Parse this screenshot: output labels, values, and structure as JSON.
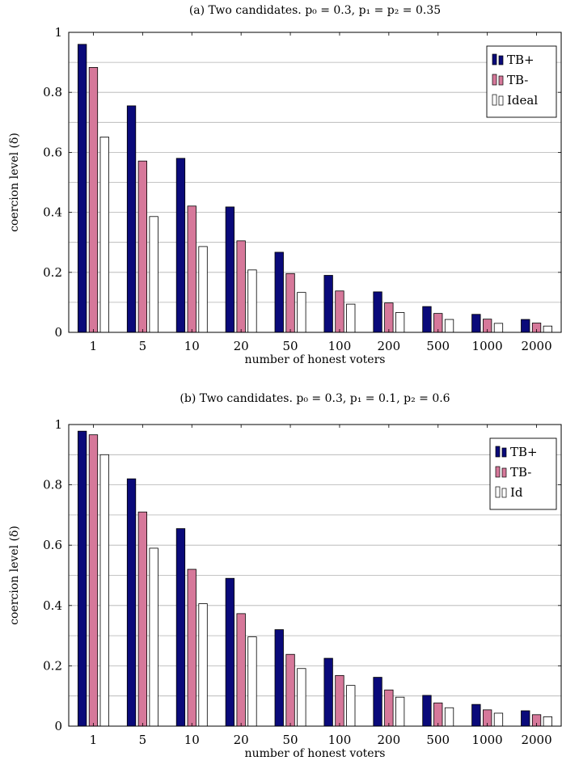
{
  "chart_data": [
    {
      "type": "bar",
      "title": "(a) Two candidates. p₀ = 0.3, p₁ = p₂ = 0.35",
      "xlabel": "number of honest voters",
      "ylabel": "coercion level (δ)",
      "ylim": [
        0,
        1
      ],
      "yticks": [
        "0",
        "0.2",
        "0.4",
        "0.6",
        "0.8",
        "1"
      ],
      "categories": [
        "1",
        "5",
        "10",
        "20",
        "50",
        "100",
        "200",
        "500",
        "1000",
        "2000"
      ],
      "grid": true,
      "legend_position": "top-right",
      "series": [
        {
          "name": "TB+",
          "color": "#0a0a7a",
          "values": [
            0.96,
            0.755,
            0.58,
            0.418,
            0.267,
            0.19,
            0.135,
            0.086,
            0.06,
            0.043
          ]
        },
        {
          "name": "TB-",
          "color": "#d6789a",
          "values": [
            0.883,
            0.571,
            0.421,
            0.305,
            0.196,
            0.138,
            0.098,
            0.063,
            0.044,
            0.031
          ]
        },
        {
          "name": "Ideal",
          "color": "#ffffff",
          "values": [
            0.651,
            0.386,
            0.286,
            0.208,
            0.133,
            0.094,
            0.066,
            0.043,
            0.03,
            0.021
          ]
        }
      ]
    },
    {
      "type": "bar",
      "title": "(b) Two candidates. p₀ = 0.3, p₁ = 0.1, p₂ = 0.6",
      "xlabel": "number of honest voters",
      "ylabel": "coercion level (δ)",
      "ylim": [
        0,
        1
      ],
      "yticks": [
        "0",
        "0.2",
        "0.4",
        "0.6",
        "0.8",
        "1"
      ],
      "categories": [
        "1",
        "5",
        "10",
        "20",
        "50",
        "100",
        "200",
        "500",
        "1000",
        "2000"
      ],
      "grid": true,
      "legend_position": "top-right",
      "series": [
        {
          "name": "TB+",
          "color": "#0a0a7a",
          "values": [
            0.978,
            0.82,
            0.655,
            0.49,
            0.32,
            0.225,
            0.162,
            0.102,
            0.072,
            0.051
          ]
        },
        {
          "name": "TB-",
          "color": "#d6789a",
          "values": [
            0.966,
            0.71,
            0.52,
            0.373,
            0.238,
            0.168,
            0.12,
            0.077,
            0.054,
            0.038
          ]
        },
        {
          "name": "Id",
          "color": "#ffffff",
          "values": [
            0.9,
            0.59,
            0.406,
            0.296,
            0.191,
            0.135,
            0.096,
            0.061,
            0.043,
            0.031
          ]
        }
      ]
    }
  ]
}
